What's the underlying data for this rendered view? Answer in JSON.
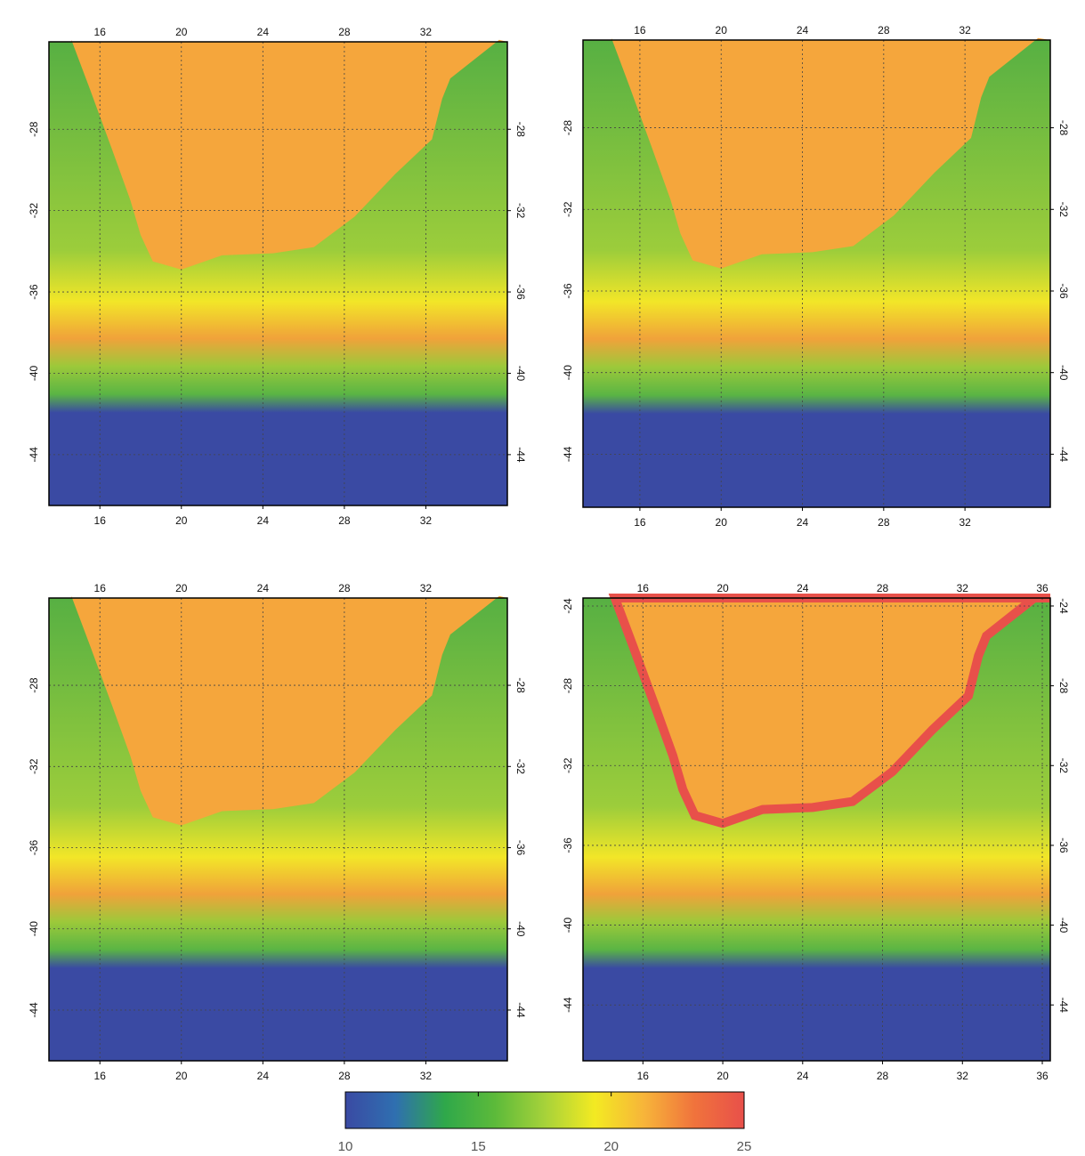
{
  "panels": [
    {
      "xlim": [
        13.5,
        36
      ],
      "ylim": [
        -46.5,
        -23.7
      ],
      "top_xticks": [
        16,
        20,
        24,
        28,
        32
      ],
      "bottom_xticks": [
        16,
        20,
        24,
        28,
        32
      ],
      "left_yticks": [
        -28,
        -32,
        -36,
        -40,
        -44
      ],
      "right_yticks": [
        -28,
        -32,
        -36,
        -40,
        -44
      ]
    },
    {
      "xlim": [
        13.2,
        36.2
      ],
      "ylim": [
        -46.6,
        -23.7
      ],
      "top_xticks": [
        16,
        20,
        24,
        28,
        32
      ],
      "bottom_xticks": [
        16,
        20,
        24,
        28,
        32
      ],
      "left_yticks": [
        -28,
        -32,
        -36,
        -40,
        -44
      ],
      "right_yticks": [
        -28,
        -32,
        -36,
        -40,
        -44
      ]
    },
    {
      "xlim": [
        13.5,
        36
      ],
      "ylim": [
        -46.5,
        -23.7
      ],
      "top_xticks": [
        16,
        20,
        24,
        28,
        32
      ],
      "bottom_xticks": [
        16,
        20,
        24,
        28,
        32
      ],
      "left_yticks": [
        -28,
        -32,
        -36,
        -40,
        -44
      ],
      "right_yticks": [
        -28,
        -32,
        -36,
        -40,
        -44
      ]
    },
    {
      "xlim": [
        13.0,
        36.4
      ],
      "ylim": [
        -46.8,
        -23.6
      ],
      "top_xticks": [
        16,
        20,
        24,
        28,
        32,
        36
      ],
      "bottom_xticks": [
        16,
        20,
        24,
        28,
        32,
        36
      ],
      "left_yticks": [
        -24,
        -28,
        -32,
        -36,
        -40,
        -44
      ],
      "right_yticks": [
        -24,
        -28,
        -32,
        -36,
        -40,
        -44
      ]
    }
  ],
  "colorbar": {
    "lim": [
      10,
      25
    ],
    "ticks": [
      10,
      15,
      20,
      25
    ],
    "colors": [
      "#3a4aa3",
      "#2f6fb0",
      "#2fa84a",
      "#5cba3a",
      "#a6d23a",
      "#f3ea22",
      "#f7b43a",
      "#f0733c",
      "#e8504a"
    ]
  }
}
